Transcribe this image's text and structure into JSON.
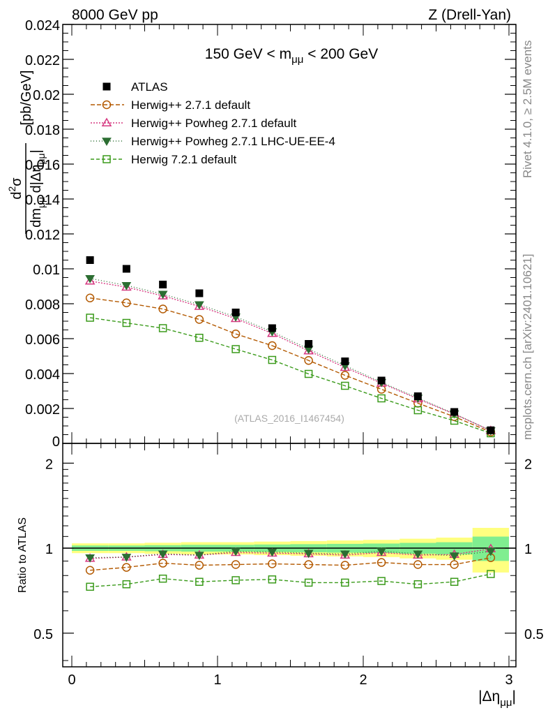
{
  "header": {
    "left": "8000 GeV pp",
    "right": "Z (Drell-Yan)"
  },
  "side": {
    "rivet": "Rivet 4.1.0, ≥ 2.5M events",
    "mcplots": "mcplots.cern.ch [arXiv:2401.10621]"
  },
  "chart_data": {
    "type": "scatter",
    "title": "150 GeV < mμμ < 200 GeV",
    "watermark": "(ATLAS_2016_I1467454)",
    "ylabel_num": "d²σ",
    "ylabel_den": "dmμμ d|Δημμ|",
    "ylabel_units": "[pb/GeV]",
    "xlabel": "|Δημμ|",
    "ratio_ylabel": "Ratio to ATLAS",
    "xlim": [
      0,
      3
    ],
    "ylim": [
      0,
      0.024
    ],
    "ratio_ylim": [
      0.38,
      2.35
    ],
    "x": [
      0.125,
      0.375,
      0.625,
      0.875,
      1.125,
      1.375,
      1.625,
      1.875,
      2.125,
      2.375,
      2.625,
      2.875
    ],
    "xticks": [
      "0",
      "1",
      "2",
      "3"
    ],
    "yticks": [
      "0.002",
      "0.004",
      "0.006",
      "0.008",
      "0.01",
      "0.012",
      "0.014",
      "0.016",
      "0.018",
      "0.02",
      "0.022",
      "0.024"
    ],
    "ratio_yticks": [
      "0.5",
      "1",
      "2"
    ],
    "data": {
      "name": "ATLAS",
      "values": [
        0.0105,
        0.01,
        0.0091,
        0.0086,
        0.0075,
        0.0066,
        0.0057,
        0.0047,
        0.0036,
        0.0027,
        0.0018,
        0.00075
      ]
    },
    "band_rel_err": [
      0.04,
      0.04,
      0.045,
      0.05,
      0.05,
      0.055,
      0.06,
      0.065,
      0.07,
      0.08,
      0.09,
      0.18
    ],
    "series": [
      {
        "name": "Herwig++ 2.7.1 default",
        "color": "#b35900",
        "marker": "circle",
        "dash": "6,3",
        "values": [
          0.00833,
          0.00805,
          0.0077,
          0.0071,
          0.00627,
          0.0056,
          0.00475,
          0.0039,
          0.0031,
          0.0023,
          0.00153,
          0.00065
        ],
        "ratio": [
          0.835,
          0.855,
          0.885,
          0.87,
          0.875,
          0.88,
          0.875,
          0.87,
          0.89,
          0.875,
          0.875,
          0.925
        ]
      },
      {
        "name": "Herwig++ Powheg 2.7.1 default",
        "color": "#d63880",
        "marker": "triangle",
        "dash": "2,2",
        "values": [
          0.0093,
          0.00895,
          0.00845,
          0.00785,
          0.00715,
          0.0063,
          0.0053,
          0.00435,
          0.00345,
          0.00255,
          0.00168,
          0.00073
        ],
        "ratio": [
          0.92,
          0.93,
          0.95,
          0.945,
          0.965,
          0.96,
          0.955,
          0.945,
          0.965,
          0.945,
          0.95,
          0.995
        ]
      },
      {
        "name": "Herwig++ Powheg 2.7.1 LHC-UE-EE-4",
        "color": "#2c6e32",
        "marker": "triangle-down",
        "dash": "1,3",
        "values": [
          0.00945,
          0.00905,
          0.00855,
          0.00795,
          0.00725,
          0.0064,
          0.0054,
          0.00445,
          0.0035,
          0.0026,
          0.0017,
          0.00073
        ],
        "ratio": [
          0.925,
          0.93,
          0.955,
          0.945,
          0.975,
          0.97,
          0.96,
          0.955,
          0.975,
          0.955,
          0.94,
          0.975
        ]
      },
      {
        "name": "Herwig 7.2.1 default",
        "color": "#3a9a1a",
        "marker": "square",
        "dash": "5,3",
        "values": [
          0.0072,
          0.0069,
          0.0066,
          0.00605,
          0.0054,
          0.00478,
          0.00398,
          0.0033,
          0.00258,
          0.0019,
          0.0013,
          0.00058
        ],
        "ratio": [
          0.73,
          0.745,
          0.78,
          0.76,
          0.77,
          0.775,
          0.755,
          0.755,
          0.765,
          0.745,
          0.76,
          0.81
        ]
      }
    ]
  }
}
